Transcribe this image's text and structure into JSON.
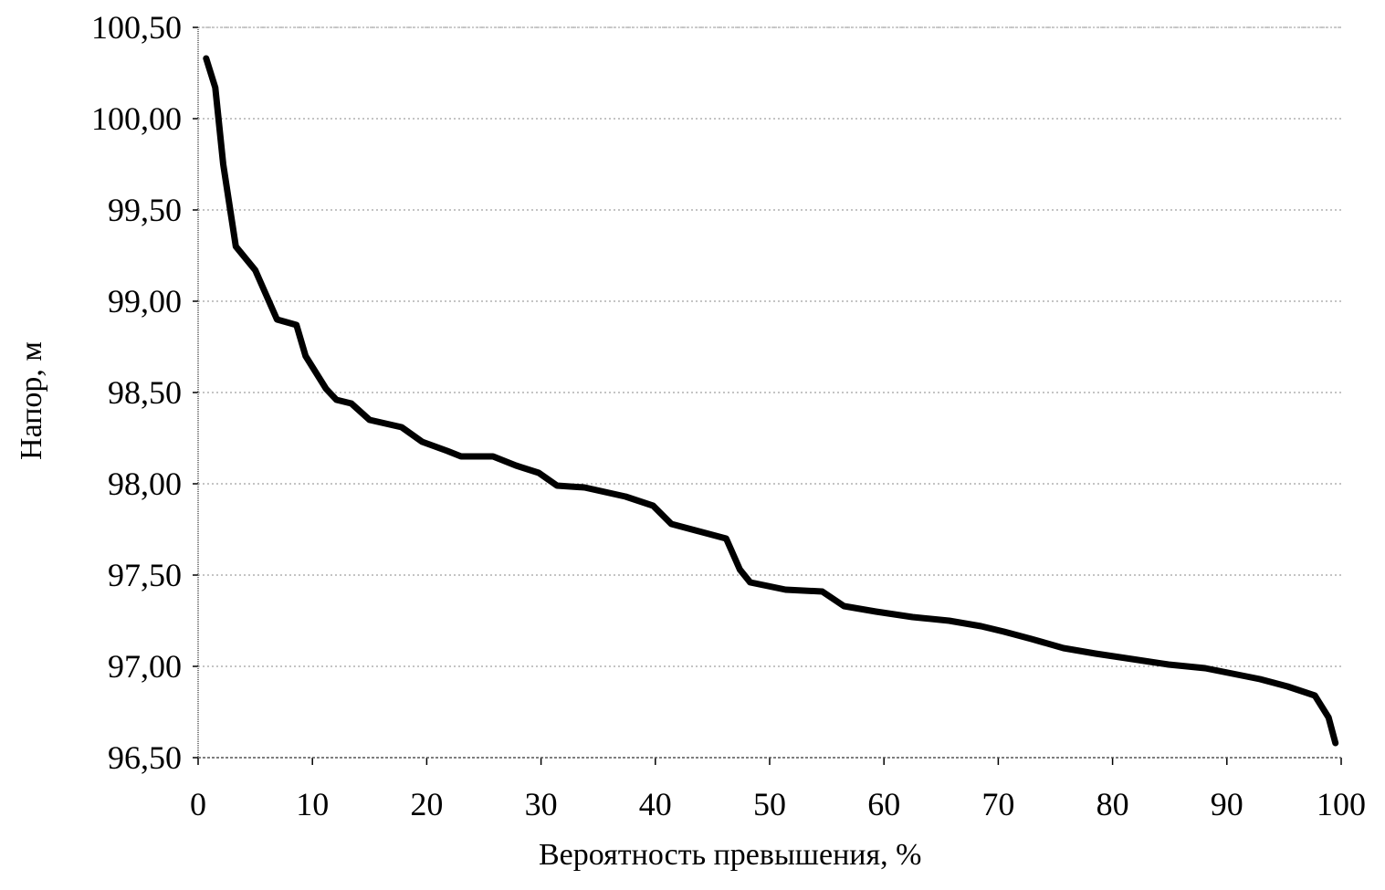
{
  "chart_data": {
    "type": "line",
    "title": "",
    "xlabel": "Вероятность превышения, %",
    "ylabel": "Напор, м",
    "xlim": [
      0,
      100
    ],
    "ylim": [
      96.5,
      100.5
    ],
    "grid": true,
    "legend": null,
    "x_ticks": [
      "0",
      "10",
      "20",
      "30",
      "40",
      "50",
      "60",
      "70",
      "80",
      "90",
      "100"
    ],
    "y_ticks": [
      "96,50",
      "97,00",
      "97,50",
      "98,00",
      "98,50",
      "99,00",
      "99,50",
      "100,00",
      "100,50"
    ],
    "series": [
      {
        "name": "Напор",
        "color": "#000000",
        "x": [
          0.7,
          1.5,
          2.2,
          3.3,
          5.0,
          6.9,
          8.6,
          9.4,
          11.2,
          12.1,
          13.4,
          15.0,
          17.8,
          19.6,
          21.8,
          23.0,
          25.8,
          27.8,
          29.8,
          31.4,
          33.8,
          37.4,
          39.8,
          41.4,
          43.8,
          46.2,
          47.4,
          48.3,
          51.4,
          54.6,
          56.5,
          59.3,
          62.5,
          65.7,
          68.5,
          70.5,
          72.9,
          75.7,
          78.5,
          81.7,
          84.9,
          88.1,
          90.5,
          92.9,
          95.3,
          97.7,
          98.9,
          99.5
        ],
        "y": [
          100.33,
          100.17,
          99.75,
          99.3,
          99.17,
          98.9,
          98.87,
          98.7,
          98.52,
          98.46,
          98.44,
          98.35,
          98.31,
          98.23,
          98.18,
          98.15,
          98.15,
          98.1,
          98.06,
          97.99,
          97.98,
          97.93,
          97.88,
          97.78,
          97.74,
          97.7,
          97.53,
          97.46,
          97.42,
          97.41,
          97.33,
          97.3,
          97.27,
          97.25,
          97.22,
          97.19,
          97.15,
          97.1,
          97.07,
          97.04,
          97.01,
          96.99,
          96.96,
          96.93,
          96.89,
          96.84,
          96.72,
          96.58
        ]
      }
    ]
  }
}
